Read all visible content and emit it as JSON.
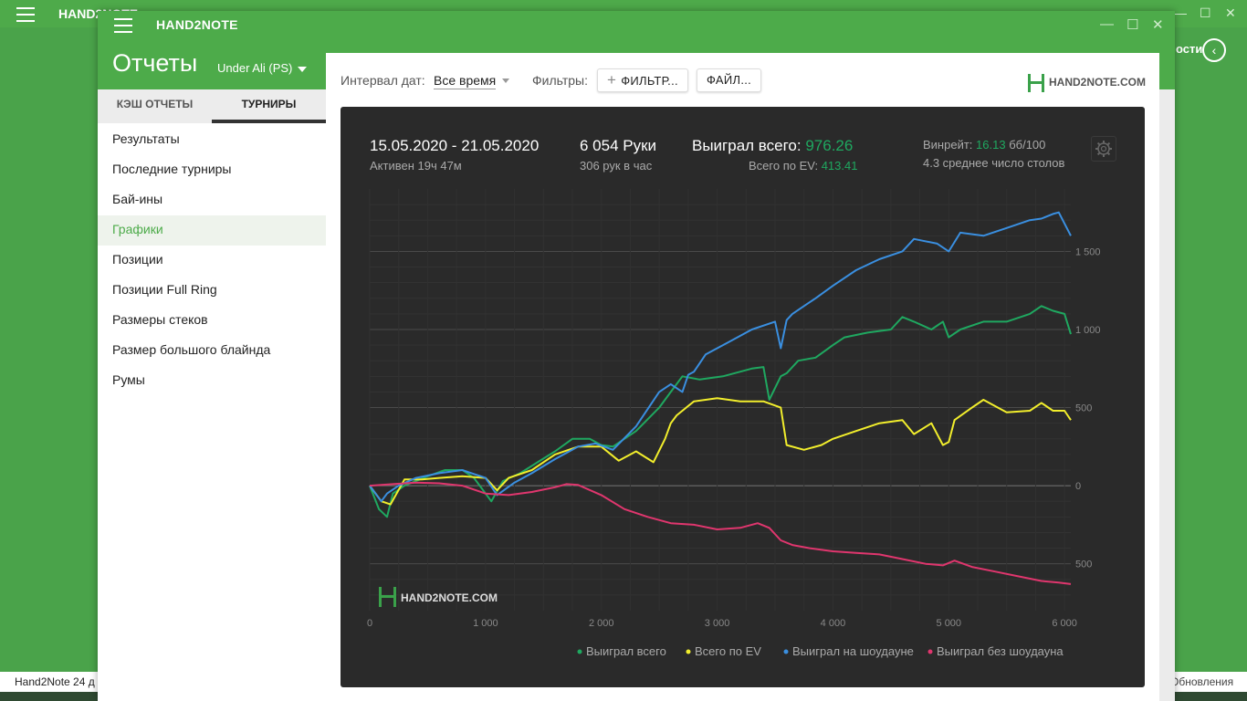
{
  "background": {
    "app_title": "HAND2NOTE",
    "right_text": "ости",
    "bottom_left_text": "Hand2Note 24 д",
    "bottom_right_text": "Обновления"
  },
  "window": {
    "title": "HAND2NOTE",
    "page_title": "Отчеты",
    "account": "Under Ali (PS)"
  },
  "tabs": [
    {
      "label": "КЭШ ОТЧЕТЫ",
      "active": false
    },
    {
      "label": "ТУРНИРЫ",
      "active": true
    }
  ],
  "nav": [
    {
      "label": "Результаты",
      "active": false
    },
    {
      "label": "Последние турниры",
      "active": false
    },
    {
      "label": "Бай-ины",
      "active": false
    },
    {
      "label": "Графики",
      "active": true
    },
    {
      "label": "Позиции",
      "active": false
    },
    {
      "label": "Позиции Full Ring",
      "active": false
    },
    {
      "label": "Размеры стеков",
      "active": false
    },
    {
      "label": "Размер большого блайнда",
      "active": false
    },
    {
      "label": "Румы",
      "active": false
    }
  ],
  "filterbar": {
    "date_label": "Интервал дат:",
    "date_value": "Все время",
    "filters_label": "Фильтры:",
    "filter_button": "ФИЛЬТР...",
    "file_button": "ФАЙЛ...",
    "logo_text": "HAND2NOTE.COM"
  },
  "stats": {
    "date_range": "15.05.2020 - 21.05.2020",
    "active": "Активен 19ч 47м",
    "hands": "6 054 Руки",
    "hands_per_hour": "306 рук в час",
    "won_label": "Выиграл всего:",
    "won_value": "976.26",
    "ev_label": "Всего по EV:",
    "ev_value": "413.41",
    "winrate_label": "Винрейт:",
    "winrate_value": "16.13",
    "winrate_unit": "бб/100",
    "tables": "4.3 среднее число столов",
    "watermark": "HAND2NOTE.COM"
  },
  "colors": {
    "accent": "#4dab4a",
    "won": "#1fa860",
    "ev": "#f2ee2c",
    "showdown": "#3a8fe0",
    "non_showdown": "#e0366e"
  },
  "chart_data": {
    "type": "line",
    "xlabel": "",
    "ylabel": "",
    "xlim": [
      0,
      6054
    ],
    "ylim": [
      -800,
      1900
    ],
    "x_ticks": [
      0,
      1000,
      2000,
      3000,
      4000,
      5000,
      6000
    ],
    "x_tick_labels": [
      "0",
      "1 000",
      "2 000",
      "3 000",
      "4 000",
      "5 000",
      "6 000"
    ],
    "y_ticks": [
      1500,
      1000,
      500,
      0,
      -500
    ],
    "y_tick_labels": [
      "1 500",
      "1 000",
      "500",
      "0",
      "500"
    ],
    "legend_position": "bottom-right",
    "series": [
      {
        "name": "Выиграл всего",
        "color": "#1fa860",
        "x": [
          0,
          80,
          150,
          200,
          300,
          500,
          650,
          800,
          900,
          1000,
          1050,
          1150,
          1300,
          1450,
          1600,
          1750,
          1900,
          2000,
          2100,
          2300,
          2500,
          2600,
          2700,
          2850,
          3050,
          3300,
          3400,
          3450,
          3550,
          3600,
          3700,
          3850,
          4000,
          4100,
          4300,
          4500,
          4600,
          4700,
          4850,
          4950,
          5000,
          5100,
          5300,
          5500,
          5700,
          5800,
          5900,
          6000,
          6054
        ],
        "y": [
          0,
          -150,
          -200,
          -50,
          0,
          60,
          100,
          100,
          50,
          -50,
          -100,
          30,
          80,
          150,
          220,
          300,
          300,
          260,
          250,
          350,
          500,
          600,
          700,
          680,
          700,
          750,
          760,
          550,
          700,
          720,
          800,
          820,
          900,
          950,
          980,
          1000,
          1080,
          1050,
          1000,
          1050,
          950,
          1000,
          1050,
          1050,
          1100,
          1150,
          1120,
          1100,
          970
        ]
      },
      {
        "name": "Всего по EV",
        "color": "#f2ee2c",
        "x": [
          0,
          100,
          180,
          300,
          450,
          600,
          800,
          1000,
          1100,
          1200,
          1400,
          1600,
          1800,
          2000,
          2150,
          2300,
          2450,
          2550,
          2600,
          2650,
          2700,
          2800,
          3000,
          3200,
          3400,
          3550,
          3600,
          3750,
          3900,
          4000,
          4200,
          4400,
          4600,
          4700,
          4850,
          4950,
          5000,
          5050,
          5200,
          5300,
          5500,
          5700,
          5800,
          5900,
          6000,
          6054
        ],
        "y": [
          0,
          -100,
          -120,
          40,
          40,
          50,
          60,
          50,
          -30,
          50,
          100,
          200,
          250,
          250,
          160,
          220,
          150,
          300,
          400,
          450,
          480,
          540,
          560,
          540,
          540,
          500,
          260,
          230,
          260,
          300,
          350,
          400,
          420,
          330,
          400,
          260,
          280,
          420,
          500,
          550,
          470,
          480,
          530,
          480,
          480,
          420
        ]
      },
      {
        "name": "Выиграл на шоудауне",
        "color": "#3a8fe0",
        "x": [
          0,
          100,
          150,
          250,
          400,
          600,
          800,
          1000,
          1100,
          1250,
          1400,
          1600,
          1800,
          1950,
          2100,
          2300,
          2500,
          2600,
          2700,
          2750,
          2800,
          2900,
          3100,
          3300,
          3500,
          3550,
          3600,
          3650,
          3750,
          3850,
          4000,
          4200,
          4400,
          4600,
          4700,
          4900,
          5000,
          5100,
          5300,
          5500,
          5700,
          5800,
          5900,
          5950,
          6054
        ],
        "y": [
          0,
          -100,
          -50,
          0,
          50,
          80,
          100,
          50,
          -60,
          20,
          80,
          170,
          250,
          270,
          230,
          380,
          600,
          650,
          600,
          710,
          730,
          840,
          920,
          1000,
          1050,
          880,
          1060,
          1100,
          1150,
          1200,
          1280,
          1380,
          1450,
          1500,
          1580,
          1550,
          1500,
          1620,
          1600,
          1650,
          1700,
          1710,
          1740,
          1750,
          1600
        ]
      },
      {
        "name": "Выиграл без шоудауна",
        "color": "#e0366e",
        "x": [
          0,
          200,
          400,
          600,
          800,
          1000,
          1200,
          1400,
          1600,
          1700,
          1800,
          2000,
          2200,
          2400,
          2600,
          2800,
          3000,
          3200,
          3350,
          3450,
          3550,
          3650,
          3800,
          4000,
          4200,
          4400,
          4600,
          4800,
          4950,
          5050,
          5200,
          5400,
          5600,
          5800,
          5950,
          6054
        ],
        "y": [
          0,
          10,
          20,
          15,
          0,
          -50,
          -60,
          -40,
          -10,
          10,
          5,
          -60,
          -150,
          -200,
          -240,
          -250,
          -280,
          -270,
          -240,
          -270,
          -350,
          -380,
          -400,
          -420,
          -430,
          -440,
          -470,
          -500,
          -510,
          -480,
          -520,
          -550,
          -580,
          -610,
          -620,
          -630
        ]
      }
    ]
  }
}
